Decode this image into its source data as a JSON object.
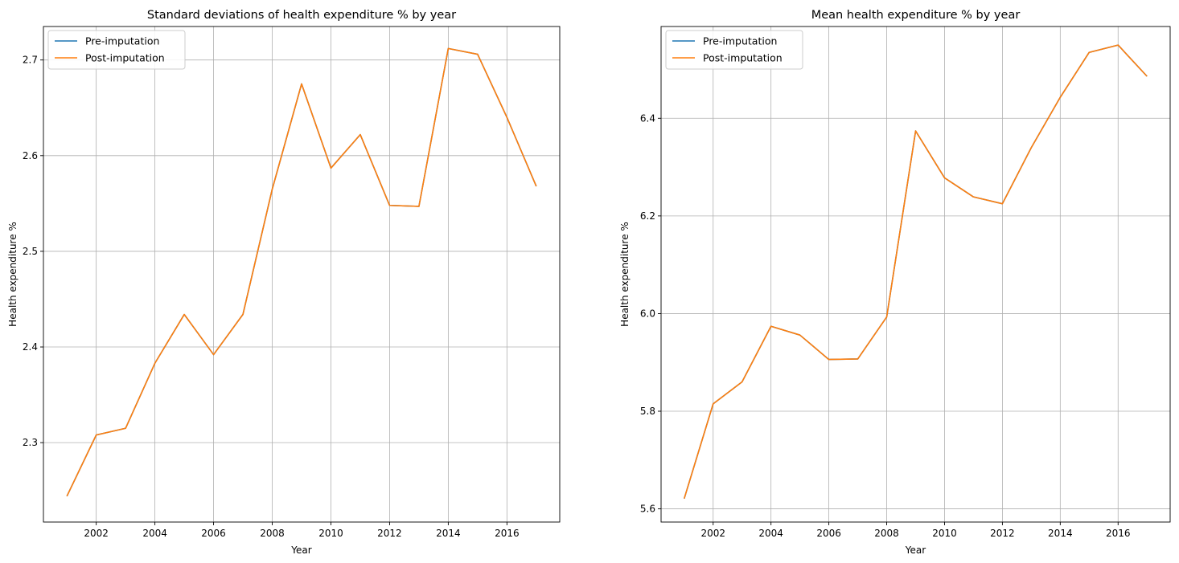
{
  "chart_data": [
    {
      "type": "line",
      "title": "Standard deviations of health expenditure % by year",
      "xlabel": "Year",
      "ylabel": "Health expenditure %",
      "xlim": [
        2000.2,
        2017.8
      ],
      "ylim": [
        2.217,
        2.735
      ],
      "xticks": [
        2002,
        2004,
        2006,
        2008,
        2010,
        2012,
        2014,
        2016
      ],
      "yticks": [
        2.3,
        2.4,
        2.5,
        2.6,
        2.7
      ],
      "grid": true,
      "legend_position": "upper-left",
      "x": [
        2001,
        2002,
        2003,
        2004,
        2005,
        2006,
        2007,
        2008,
        2009,
        2010,
        2011,
        2012,
        2013,
        2014,
        2015,
        2016,
        2017
      ],
      "series": [
        {
          "name": "Pre-imputation",
          "color": "#1f77b4",
          "values": [
            2.244,
            2.308,
            2.315,
            2.383,
            2.434,
            2.392,
            2.434,
            2.565,
            2.675,
            2.587,
            2.622,
            2.548,
            2.547,
            2.712,
            2.706,
            2.64,
            2.568
          ]
        },
        {
          "name": "Post-imputation",
          "color": "#ff7f0e",
          "values": [
            2.244,
            2.308,
            2.315,
            2.383,
            2.434,
            2.392,
            2.434,
            2.565,
            2.675,
            2.587,
            2.622,
            2.548,
            2.547,
            2.712,
            2.706,
            2.64,
            2.568
          ]
        }
      ]
    },
    {
      "type": "line",
      "title": "Mean health expenditure % by year",
      "xlabel": "Year",
      "ylabel": "Health expenditure %",
      "xlim": [
        2000.2,
        2017.8
      ],
      "ylim": [
        5.573,
        6.588
      ],
      "xticks": [
        2002,
        2004,
        2006,
        2008,
        2010,
        2012,
        2014,
        2016
      ],
      "yticks": [
        5.6,
        5.8,
        6.0,
        6.2,
        6.4
      ],
      "grid": true,
      "legend_position": "upper-left",
      "x": [
        2001,
        2002,
        2003,
        2004,
        2005,
        2006,
        2007,
        2008,
        2009,
        2010,
        2011,
        2012,
        2013,
        2014,
        2015,
        2016,
        2017
      ],
      "series": [
        {
          "name": "Pre-imputation",
          "color": "#1f77b4",
          "values": [
            5.621,
            5.815,
            5.86,
            5.974,
            5.956,
            5.906,
            5.907,
            5.993,
            6.374,
            6.278,
            6.239,
            6.225,
            6.34,
            6.443,
            6.535,
            6.55,
            6.486
          ]
        },
        {
          "name": "Post-imputation",
          "color": "#ff7f0e",
          "values": [
            5.621,
            5.815,
            5.86,
            5.974,
            5.956,
            5.906,
            5.907,
            5.993,
            6.374,
            6.278,
            6.239,
            6.225,
            6.34,
            6.443,
            6.535,
            6.55,
            6.486
          ]
        }
      ]
    }
  ]
}
